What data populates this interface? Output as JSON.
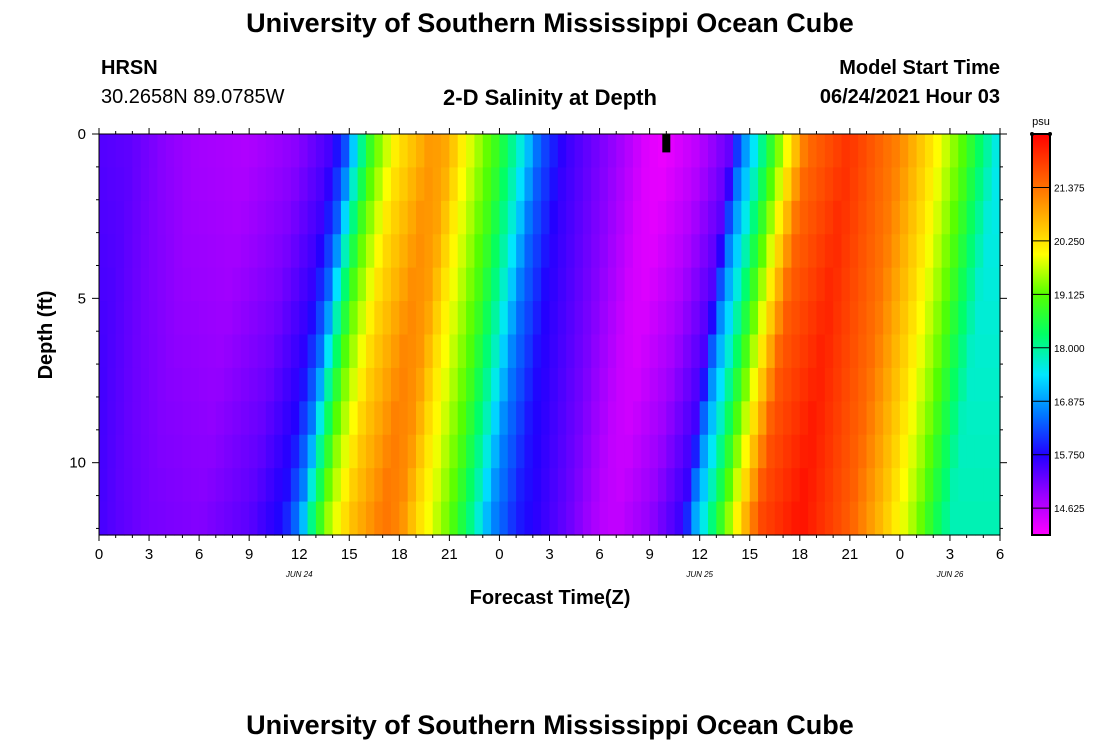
{
  "header": {
    "title": "University of Southern Mississippi Ocean Cube",
    "station": "HRSN",
    "coords": "30.2658N  89.0785W",
    "chart_title": "2-D Salinity at Depth",
    "model_label": "Model Start Time",
    "model_time": "06/24/2021 Hour 03"
  },
  "footer": {
    "title": "University of Southern Mississippi Ocean Cube"
  },
  "chart_data": {
    "type": "heatmap",
    "title": "2-D Salinity at Depth",
    "xlabel": "Forecast Time(Z)",
    "ylabel": "Depth (ft)",
    "x_ticks": [
      "0",
      "3",
      "6",
      "9",
      "12",
      "15",
      "18",
      "21",
      "0",
      "3",
      "6",
      "9",
      "12",
      "15",
      "18",
      "21",
      "0",
      "3",
      "6"
    ],
    "date_labels": [
      {
        "label": "JUN 24",
        "hour": 12
      },
      {
        "label": "JUN 25",
        "hour": 36
      },
      {
        "label": "JUN 26",
        "hour": 51
      }
    ],
    "x_range_hours": [
      0,
      54
    ],
    "y_ticks": [
      0,
      5,
      10
    ],
    "ylim_ft": [
      0,
      12.2
    ],
    "depth_levels": 12,
    "colorbar": {
      "unit": "psu",
      "tick_labels": [
        "21.375",
        "20.250",
        "19.125",
        "18.000",
        "16.875",
        "15.750",
        "14.625"
      ],
      "range": [
        14.06,
        22.5
      ],
      "colors": [
        "#ff00ff",
        "#9900ff",
        "#2200ff",
        "#0077ff",
        "#00e6ff",
        "#00ff66",
        "#55ff00",
        "#ffff00",
        "#ffaa00",
        "#ff5500",
        "#ff0000"
      ]
    },
    "surface_profile": [
      [
        0,
        15.4
      ],
      [
        2,
        15.3
      ],
      [
        4,
        15.0
      ],
      [
        6,
        14.8
      ],
      [
        9,
        14.7
      ],
      [
        12,
        15.0
      ],
      [
        14,
        15.5
      ],
      [
        15,
        16.4
      ],
      [
        15.5,
        17.5
      ],
      [
        16.5,
        19.0
      ],
      [
        18,
        20.2
      ],
      [
        20,
        21.0
      ],
      [
        21,
        20.8
      ],
      [
        22,
        20.0
      ],
      [
        24,
        18.8
      ],
      [
        25.5,
        17.5
      ],
      [
        26.5,
        16.4
      ],
      [
        28,
        15.6
      ],
      [
        31,
        14.9
      ],
      [
        33,
        14.3
      ],
      [
        34,
        14.2
      ],
      [
        36,
        14.6
      ],
      [
        38,
        15.3
      ],
      [
        38.5,
        16.4
      ],
      [
        39.5,
        17.6
      ],
      [
        41,
        19.5
      ],
      [
        42.5,
        21.4
      ],
      [
        45,
        22.0
      ],
      [
        48,
        21.2
      ],
      [
        50,
        20.2
      ],
      [
        52,
        19.0
      ],
      [
        53,
        18.2
      ],
      [
        54,
        17.5
      ]
    ],
    "marker": {
      "hour": 34,
      "depth_ft": 0.35
    }
  }
}
